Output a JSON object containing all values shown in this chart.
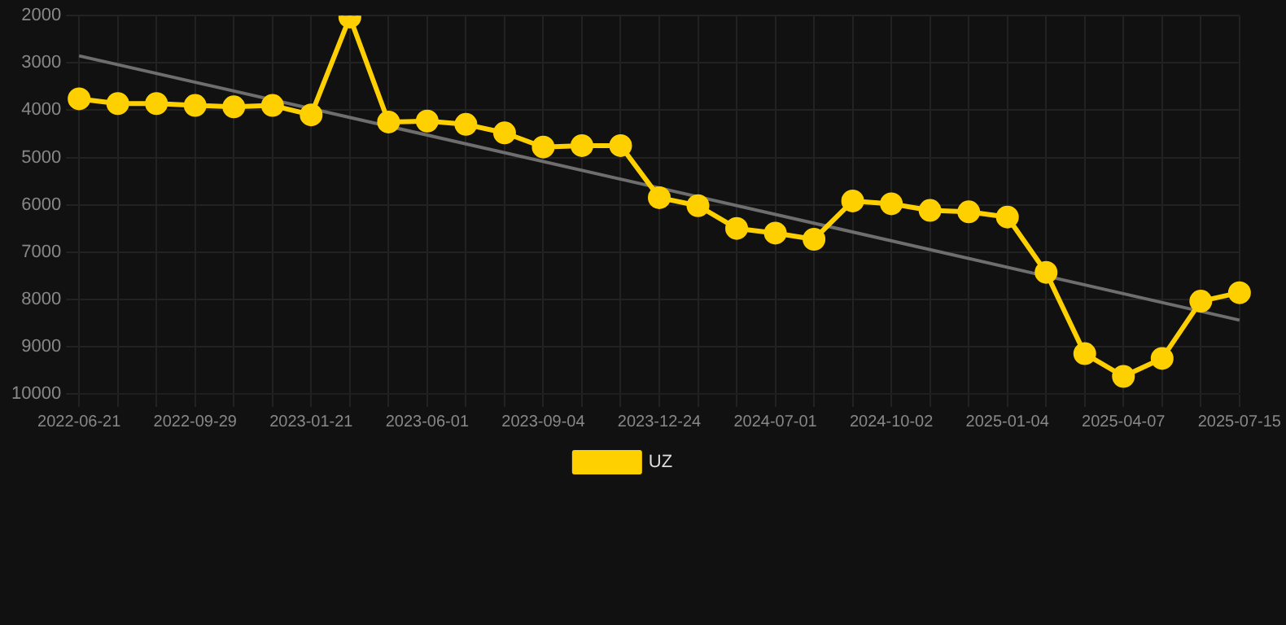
{
  "chart_data": {
    "type": "line",
    "categories": [
      "2022-06-21",
      null,
      null,
      "2022-09-29",
      null,
      null,
      "2023-01-21",
      null,
      null,
      "2023-06-01",
      null,
      null,
      "2023-09-04",
      null,
      null,
      "2023-12-24",
      null,
      null,
      "2024-07-01",
      null,
      null,
      "2024-10-02",
      null,
      null,
      "2025-01-04",
      null,
      null,
      "2025-04-07",
      null,
      null,
      "2025-07-15"
    ],
    "series": [
      {
        "name": "UZ",
        "color": "#ffd000",
        "marker": "circle",
        "values": [
          3760,
          3860,
          3860,
          3900,
          3930,
          3900,
          4100,
          2030,
          4250,
          4230,
          4300,
          4480,
          4780,
          4750,
          4750,
          5850,
          6020,
          6500,
          6600,
          6730,
          5920,
          5980,
          6120,
          6150,
          6260,
          7430,
          9150,
          9630,
          9250,
          8040,
          7860
        ]
      },
      {
        "type": "line",
        "color": "#6e6e6e",
        "marker": "none",
        "values": [
          2850,
          null,
          null,
          null,
          null,
          null,
          null,
          null,
          null,
          null,
          null,
          null,
          null,
          null,
          null,
          null,
          null,
          null,
          null,
          null,
          null,
          null,
          null,
          null,
          null,
          null,
          null,
          null,
          null,
          null,
          8440
        ]
      }
    ],
    "ylim": [
      10000,
      2000
    ],
    "yticks": [
      2000,
      3000,
      4000,
      5000,
      6000,
      7000,
      8000,
      9000,
      10000
    ],
    "grid": true,
    "legend": "bottom"
  }
}
